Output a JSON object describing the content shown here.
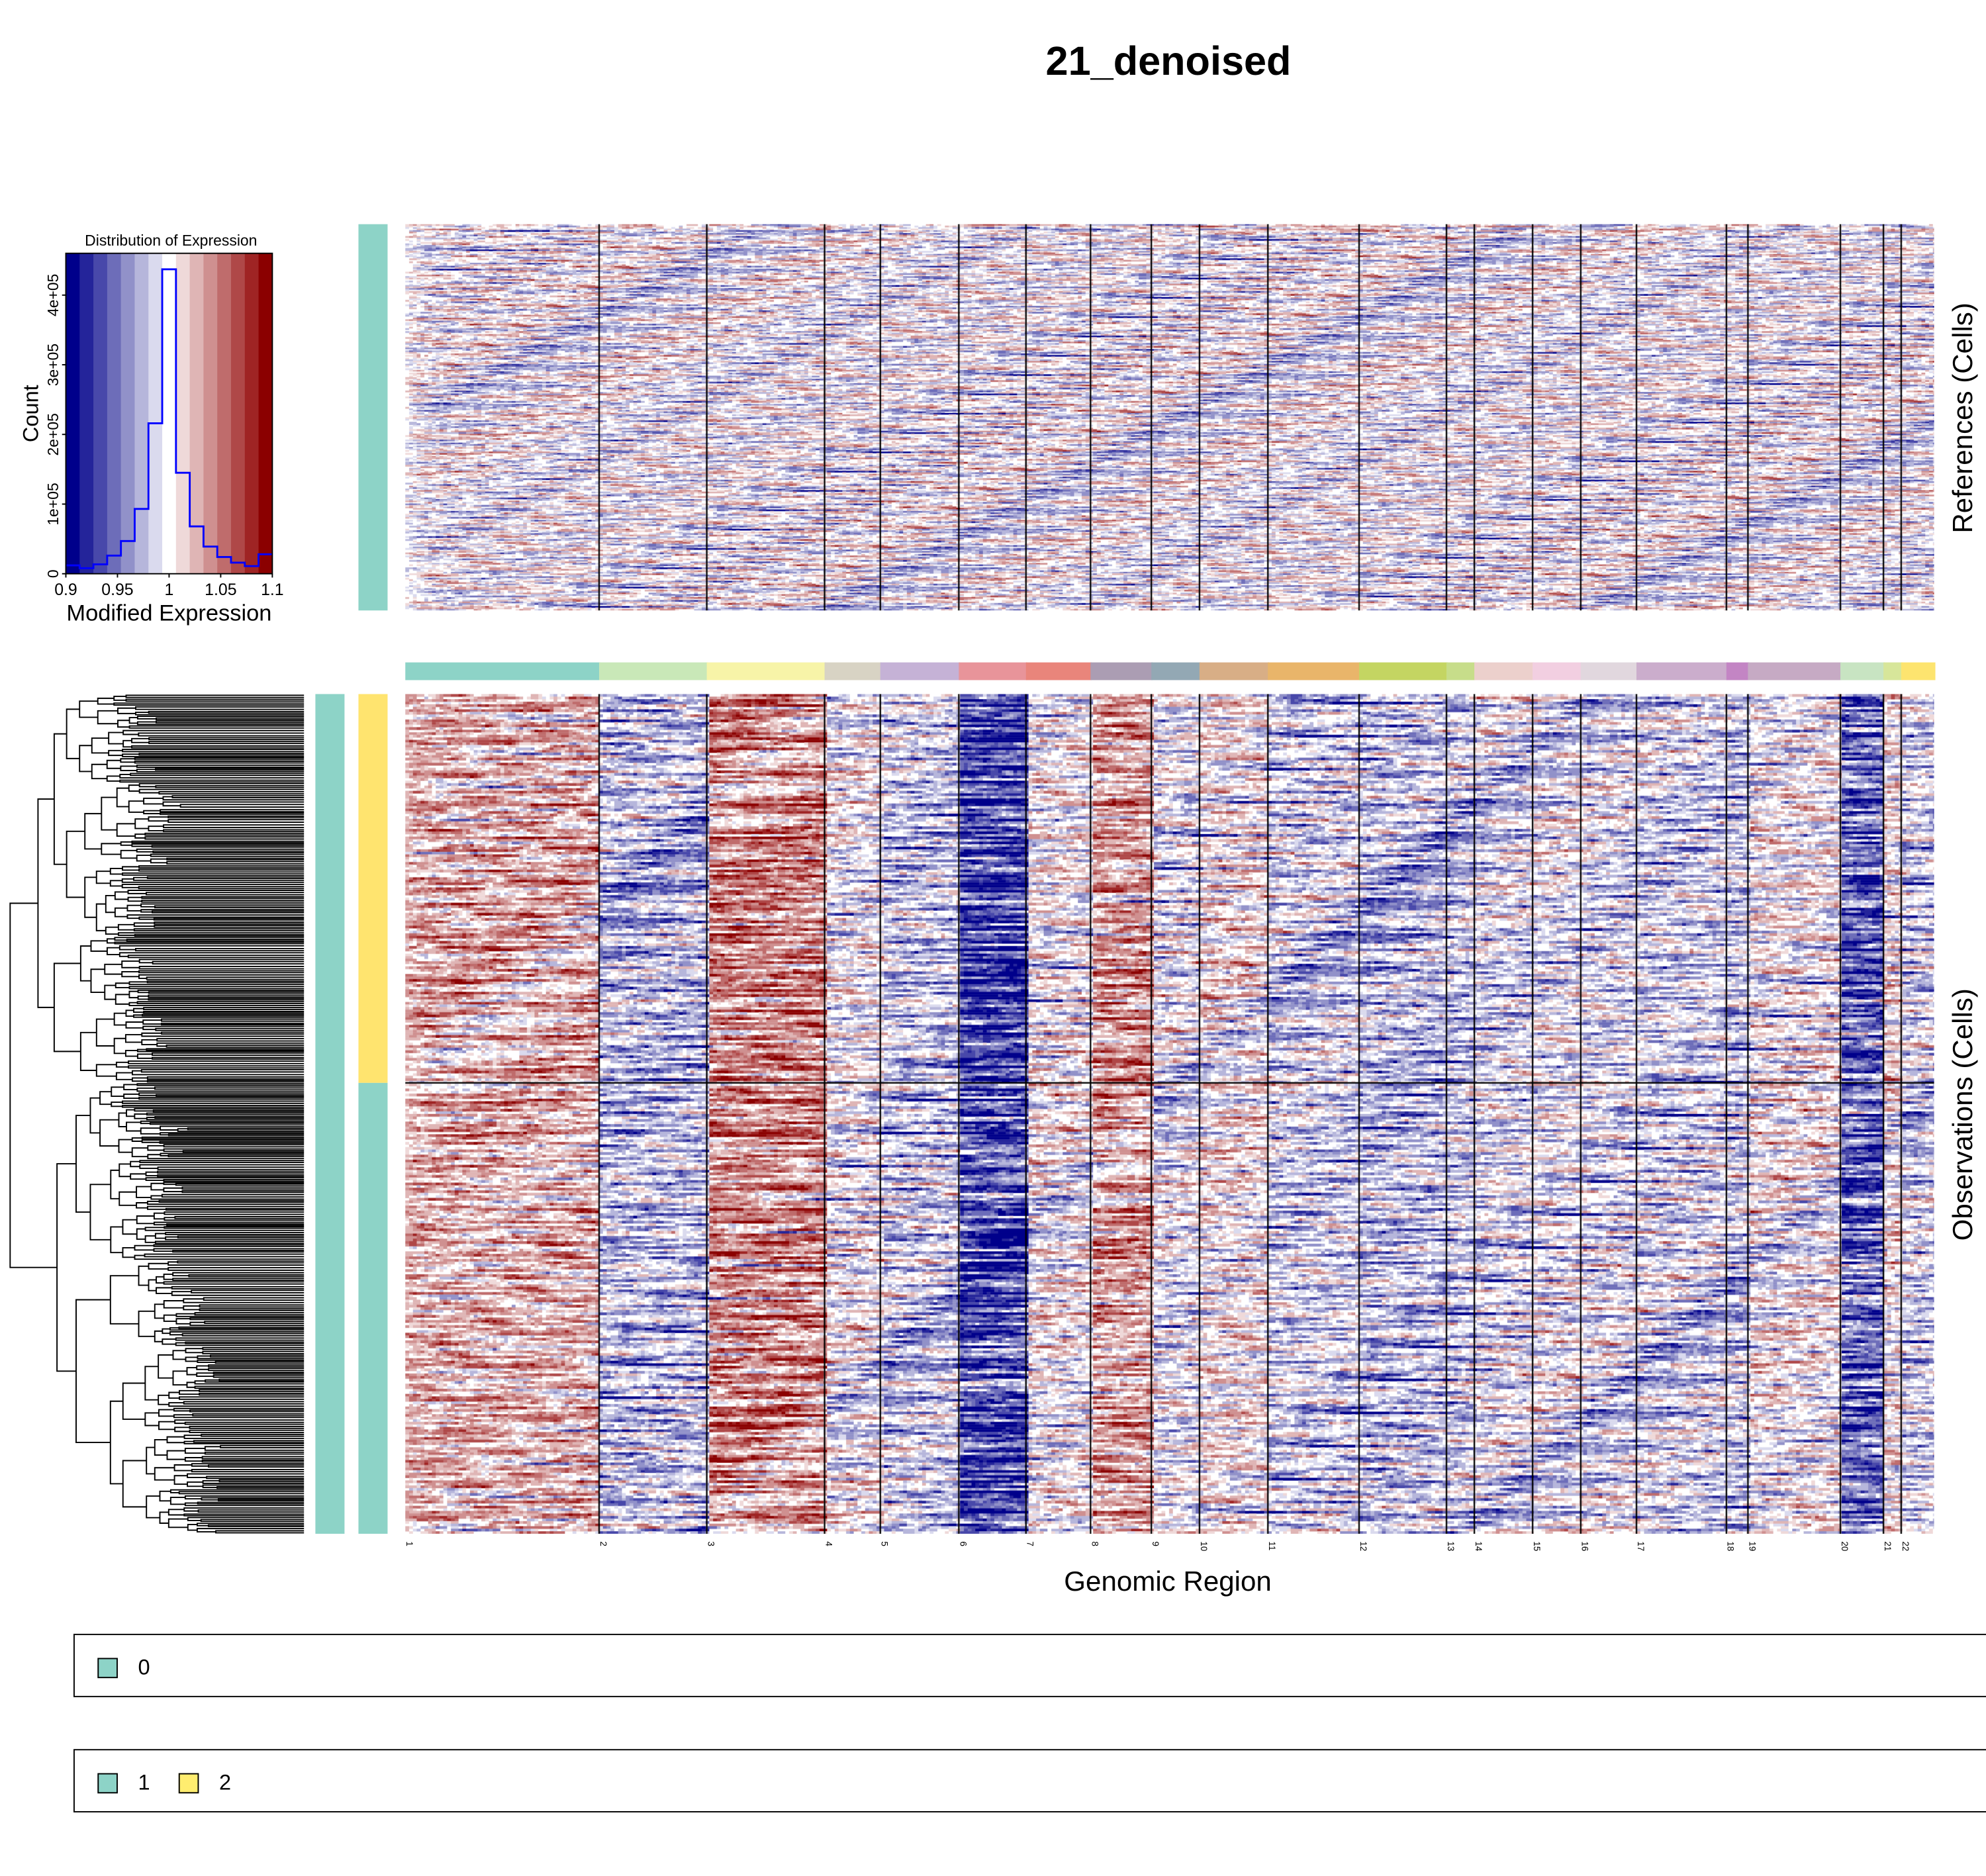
{
  "title": "21_denoised",
  "histogram": {
    "title": "Distribution of Expression",
    "ylabel": "Count",
    "xlabel": "Modified Expression",
    "xticks": [
      "0.9",
      "0.95",
      "1",
      "1.05",
      "1.1"
    ],
    "yticks": [
      "0",
      "1e+05",
      "2e+05",
      "3e+05",
      "4e+05"
    ]
  },
  "labels": {
    "references": "References (Cells)",
    "observations": "Observations (Cells)",
    "genomic_region": "Genomic Region"
  },
  "legends": [
    {
      "items": [
        {
          "label": "0",
          "color": "#8dd3c7"
        }
      ]
    },
    {
      "items": [
        {
          "label": "1",
          "color": "#8dd3c7"
        },
        {
          "label": "2",
          "color": "#ffed6f"
        }
      ]
    }
  ],
  "chromosomes": [
    "1",
    "2",
    "3",
    "4",
    "5",
    "6",
    "7",
    "8",
    "9",
    "10",
    "11",
    "12",
    "13",
    "14",
    "15",
    "16",
    "17",
    "18",
    "19",
    "20",
    "21",
    "22"
  ],
  "chromosome_colors": [
    "#8dd3c7",
    "#c9e8b8",
    "#f7f4a8",
    "#d8d3c4",
    "#c5b2d6",
    "#e8949a",
    "#e9857b",
    "#ab9db3",
    "#93a8b4",
    "#d8ae86",
    "#e9b56a",
    "#c4d562",
    "#c7dd8a",
    "#ecd0cc",
    "#f2cfe1",
    "#e1d7de",
    "#cbadcc",
    "#c385c4",
    "#c6aac4",
    "#c8e4c2",
    "#d7e69a",
    "#fde46f"
  ],
  "chart_data": {
    "type": "heatmap",
    "title": "21_denoised",
    "xlabel": "Genomic Region",
    "color_scale": {
      "min": 0.9,
      "max": 1.1,
      "low": "#00008b",
      "mid": "#ffffff",
      "high": "#8b0000"
    },
    "histogram": {
      "type": "bar",
      "title": "Distribution of Expression",
      "xlabel": "Modified Expression",
      "ylabel": "Count",
      "xlim": [
        0.9,
        1.1
      ],
      "ylim": [
        0,
        460000
      ],
      "bin_counts": [
        12000,
        8000,
        13500,
        26000,
        47000,
        93000,
        216000,
        437000,
        145000,
        68000,
        39000,
        24000,
        16000,
        11000,
        28000
      ],
      "bin_colors": [
        "#00008b",
        "#24249a",
        "#4848aa",
        "#6d6db9",
        "#9191c9",
        "#b6b6db",
        "#dadaee",
        "#ffffff",
        "#efd9d9",
        "#dfb5b5",
        "#cf9090",
        "#bf6c6c",
        "#af4848",
        "#9f2424",
        "#8b0000"
      ]
    },
    "chromosome_relative_widths": [
      153,
      85,
      93,
      44,
      62,
      53,
      51,
      48,
      38,
      54,
      72,
      69,
      22,
      46,
      38,
      44,
      71,
      17,
      73,
      34,
      14,
      26
    ],
    "observation_groups": [
      {
        "label": "2",
        "fraction": 0.46
      },
      {
        "label": "1",
        "fraction": 0.54
      }
    ],
    "reference_groups": [
      {
        "label": "0",
        "fraction": 1
      }
    ],
    "observation_bias": {
      "1": 0.35,
      "2": -0.25,
      "3": 0.55,
      "4": 0,
      "5": -0.2,
      "6": -0.8,
      "7": 0.05,
      "8": 0.45,
      "9": -0.05,
      "10": 0.1,
      "11": -0.15,
      "12": -0.25,
      "13": -0.2,
      "14": -0.1,
      "15": -0.05,
      "16": -0.1,
      "17": -0.15,
      "18": -0.2,
      "19": 0.05,
      "20": -0.65,
      "21": 0.1,
      "22": -0.15
    }
  }
}
